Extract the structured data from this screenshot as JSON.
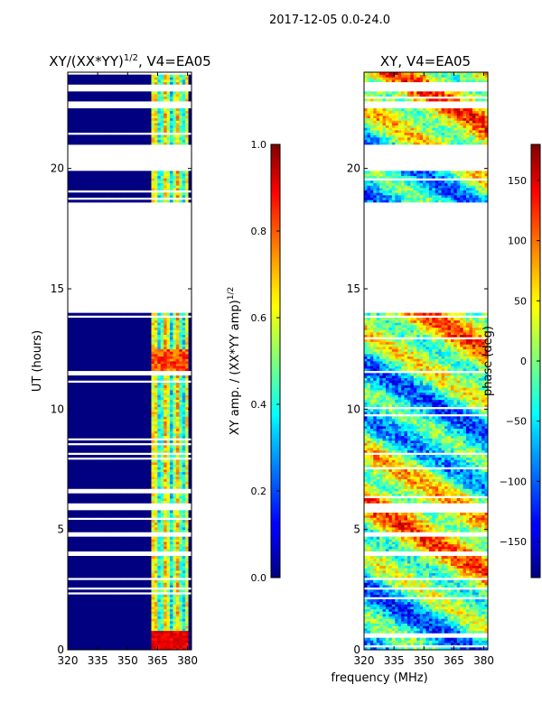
{
  "figure": {
    "suptitle": "2017-12-05 0.0-24.0",
    "shared_xlabel": "frequency (MHz)"
  },
  "chart_data": [
    {
      "type": "heatmap",
      "title": "XY/(XX*YY)",
      "title_exp": "1/2",
      "title_suffix": ", V4=EA05",
      "xlabel": "",
      "ylabel": "UT (hours)",
      "xlim": [
        320,
        382
      ],
      "ylim": [
        0,
        24
      ],
      "x_ticks": [
        320,
        335,
        350,
        365,
        380
      ],
      "y_ticks": [
        0,
        5,
        10,
        15,
        20
      ],
      "colormap": "jet",
      "colorbar": {
        "label": "XY amp. / (XX*YY amp)",
        "label_exp": "1/2",
        "range": [
          0.0,
          1.0
        ],
        "ticks": [
          "0.0",
          "0.2",
          "0.4",
          "0.6",
          "0.8",
          "1.0"
        ]
      }
    },
    {
      "type": "heatmap",
      "title": "XY, V4=EA05",
      "xlabel": "",
      "ylabel": "",
      "xlim": [
        320,
        382
      ],
      "ylim": [
        0,
        24
      ],
      "x_ticks": [
        320,
        335,
        350,
        365,
        380
      ],
      "y_ticks": [
        0,
        5,
        10,
        15,
        20
      ],
      "colormap": "jet",
      "colorbar": {
        "label": "phase (deg)",
        "range": [
          -180,
          180
        ],
        "ticks": [
          "−150",
          "−100",
          "−50",
          "0",
          "50",
          "100",
          "150"
        ]
      }
    }
  ],
  "data_gaps_hours": [
    [
      23.2,
      23.5
    ],
    [
      22.5,
      22.8
    ],
    [
      20.8,
      21.0
    ],
    [
      19.95,
      20.8
    ],
    [
      14.0,
      18.6
    ],
    [
      5.85,
      6.1
    ],
    [
      4.7,
      4.9
    ],
    [
      3.9,
      4.1
    ]
  ]
}
